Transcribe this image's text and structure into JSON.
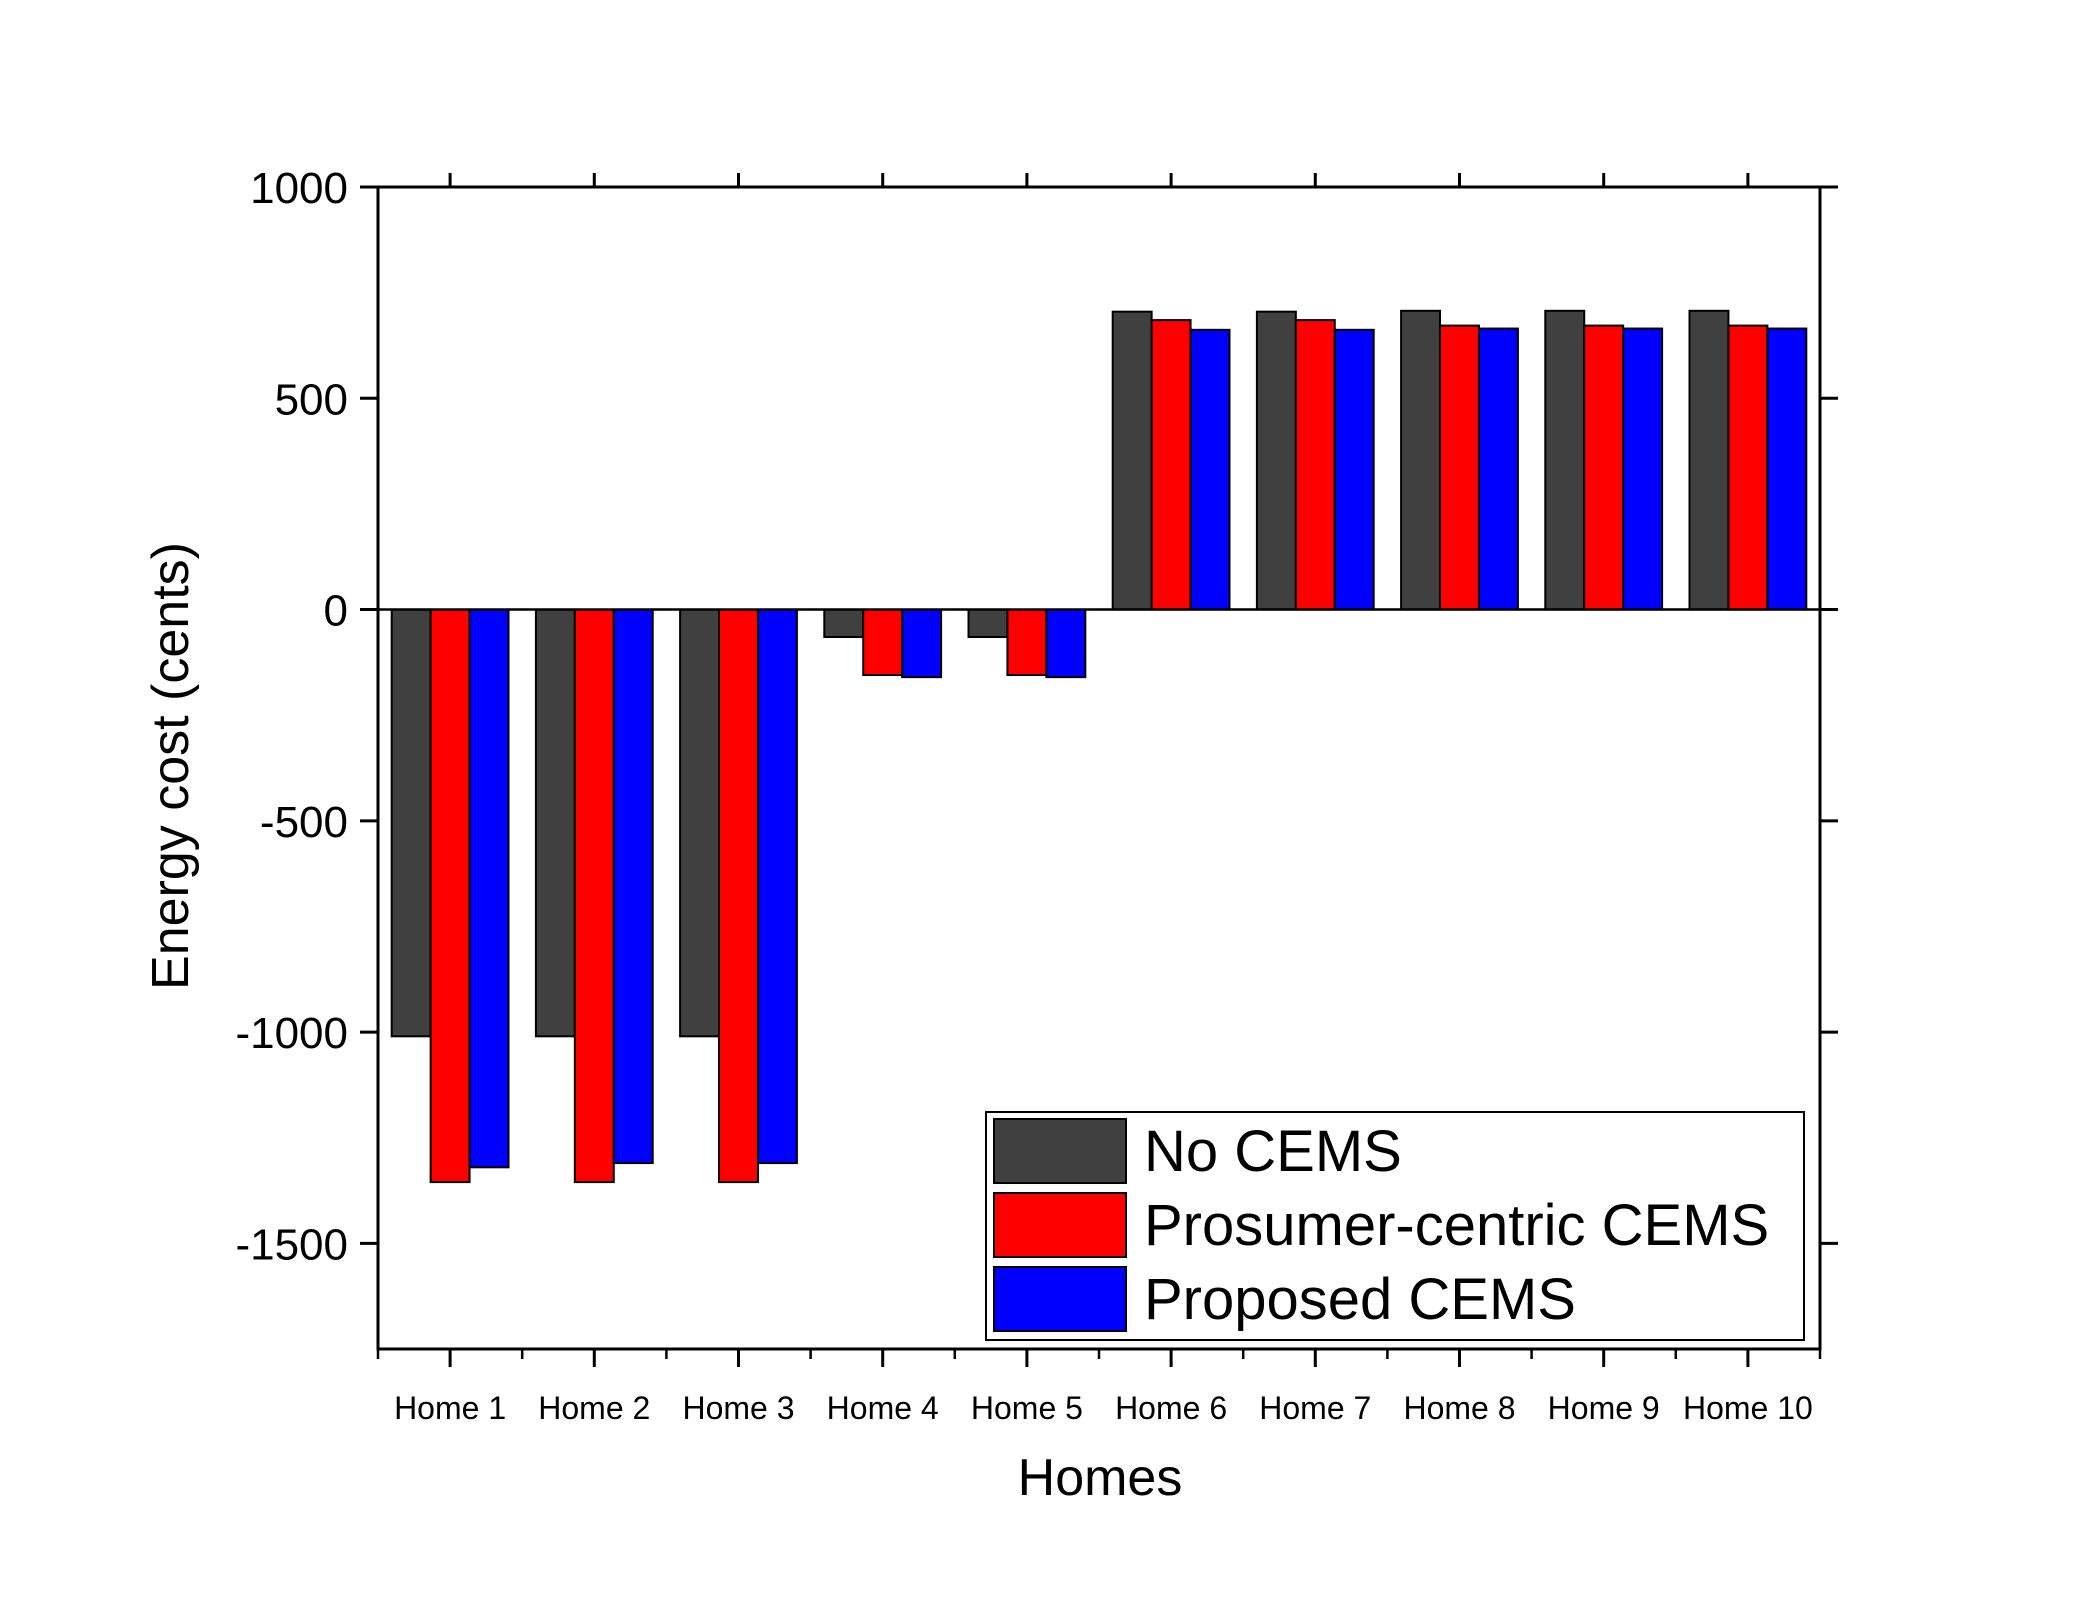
{
  "chart_data": {
    "type": "bar",
    "title": "",
    "xlabel": "Homes",
    "ylabel": "Energy cost (cents)",
    "ylim": [
      -1750,
      1000
    ],
    "yticks": [
      1000,
      500,
      0,
      -500,
      -1000,
      -1500
    ],
    "grid": false,
    "legend_position": "bottom-right",
    "categories": [
      "Home 1",
      "Home 2",
      "Home 3",
      "Home 4",
      "Home 5",
      "Home 6",
      "Home 7",
      "Home 8",
      "Home 9",
      "Home 10"
    ],
    "series": [
      {
        "name": "No CEMS",
        "color": "#404040",
        "values": [
          -1010,
          -1010,
          -1010,
          -65,
          -65,
          705,
          705,
          707,
          707,
          707
        ]
      },
      {
        "name": "Prosumer-centric CEMS",
        "color": "#ff0000",
        "values": [
          -1355,
          -1355,
          -1355,
          -155,
          -155,
          685,
          685,
          672,
          672,
          672
        ]
      },
      {
        "name": "Proposed CEMS",
        "color": "#0000ff",
        "values": [
          -1320,
          -1310,
          -1310,
          -160,
          -160,
          662,
          662,
          665,
          665,
          665
        ]
      }
    ]
  }
}
